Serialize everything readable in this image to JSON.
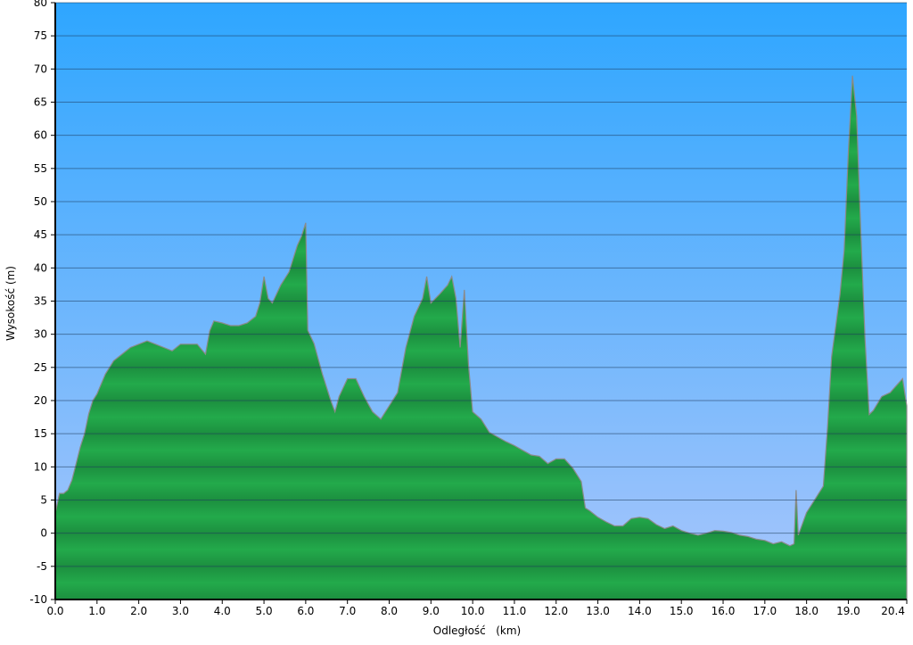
{
  "chart_data": {
    "type": "area",
    "title": "",
    "xlabel": "Odległość   (km)",
    "ylabel": "Wysokość (m)",
    "xlim": [
      0,
      20.4
    ],
    "ylim": [
      -10,
      80
    ],
    "x_ticks": [
      "0.0",
      "1.0",
      "2.0",
      "3.0",
      "4.0",
      "5.0",
      "6.0",
      "7.0",
      "8.0",
      "9.0",
      "10.0",
      "11.0",
      "12.0",
      "13.0",
      "14.0",
      "15.0",
      "16.0",
      "17.0",
      "18.0",
      "19.0",
      "20.4"
    ],
    "y_ticks": [
      -10,
      -5,
      0,
      5,
      10,
      15,
      20,
      25,
      30,
      35,
      40,
      45,
      50,
      55,
      60,
      65,
      70,
      75,
      80
    ],
    "grid": true,
    "colors": {
      "sky_top": "#2ea6ff",
      "sky_bottom": "#a9c6fb",
      "terrain": "#22a84a",
      "terrain_dark": "#17803a",
      "grid": "#2a4a6a"
    },
    "series": [
      {
        "x": [
          0,
          0.1,
          0.2,
          0.3,
          0.4,
          0.5,
          0.6,
          0.7,
          0.8,
          0.9,
          1.0,
          1.2,
          1.4,
          1.6,
          1.8,
          2.0,
          2.2,
          2.4,
          2.6,
          2.8,
          3.0,
          3.2,
          3.4,
          3.6,
          3.7,
          3.8,
          4.0,
          4.2,
          4.4,
          4.6,
          4.8,
          4.9,
          5.0,
          5.1,
          5.2,
          5.4,
          5.6,
          5.8,
          5.9,
          6.0,
          6.05,
          6.2,
          6.4,
          6.6,
          6.7,
          6.8,
          7.0,
          7.2,
          7.4,
          7.6,
          7.8,
          8.0,
          8.2,
          8.4,
          8.6,
          8.8,
          8.9,
          9.0,
          9.2,
          9.4,
          9.5,
          9.6,
          9.7,
          9.8,
          9.9,
          10.0,
          10.2,
          10.4,
          10.6,
          10.8,
          11.0,
          11.2,
          11.4,
          11.6,
          11.8,
          12.0,
          12.2,
          12.4,
          12.6,
          12.7,
          12.8,
          13.0,
          13.2,
          13.4,
          13.6,
          13.8,
          14.0,
          14.2,
          14.4,
          14.6,
          14.8,
          15.0,
          15.2,
          15.4,
          15.6,
          15.8,
          16.0,
          16.2,
          16.4,
          16.6,
          16.8,
          17.0,
          17.2,
          17.4,
          17.6,
          17.7,
          17.75,
          17.8,
          18.0,
          18.2,
          18.4,
          18.5,
          18.6,
          18.8,
          18.9,
          19.0,
          19.1,
          19.2,
          19.3,
          19.4,
          19.5,
          19.6,
          19.8,
          20.0,
          20.2,
          20.3,
          20.4
        ],
        "y": [
          3,
          6,
          6,
          6.5,
          8,
          10.5,
          13,
          15,
          18,
          20,
          21,
          24,
          26,
          27,
          28,
          28.5,
          29,
          28.5,
          28,
          27.5,
          28.5,
          28.5,
          28.5,
          27,
          30.5,
          32,
          31.7,
          31.3,
          31.3,
          31.7,
          32.7,
          34.7,
          38.7,
          35.4,
          34.7,
          37.4,
          39.4,
          43.4,
          44.8,
          46.8,
          30.6,
          28.6,
          24,
          20,
          18.3,
          20.6,
          23.3,
          23.3,
          20.6,
          18.3,
          17.2,
          19.2,
          21.2,
          28,
          32.7,
          35.4,
          38.7,
          34.7,
          36,
          37.4,
          38.7,
          35.4,
          28,
          36.7,
          25.3,
          18.3,
          17.2,
          15.2,
          14.5,
          13.8,
          13.2,
          12.5,
          11.8,
          11.6,
          10.5,
          11.2,
          11.2,
          9.8,
          7.8,
          3.8,
          3.4,
          2.4,
          1.7,
          1.1,
          1.1,
          2.2,
          2.4,
          2.2,
          1.3,
          0.7,
          1.1,
          0.4,
          0,
          -0.3,
          0,
          0.4,
          0.3,
          0.1,
          -0.3,
          -0.5,
          -0.9,
          -1.1,
          -1.6,
          -1.3,
          -1.9,
          -1.6,
          6.5,
          -0.3,
          3.1,
          5.1,
          7.1,
          15.9,
          26.6,
          36,
          42.7,
          57.5,
          69,
          62.9,
          45.4,
          29.3,
          17.9,
          18.5,
          20.6,
          21.2,
          22.6,
          23.3,
          19.2
        ]
      }
    ]
  }
}
